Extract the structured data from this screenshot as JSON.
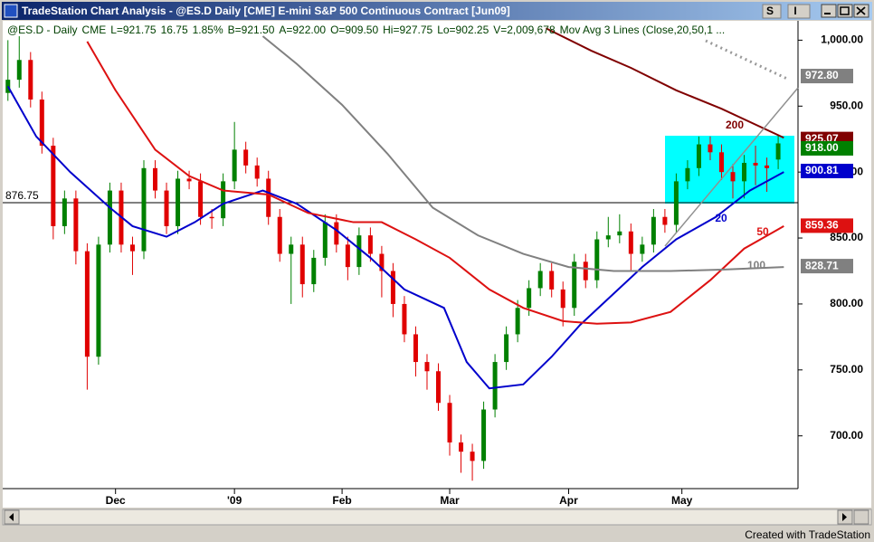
{
  "window": {
    "title": "TradeStation Chart Analysis - @ES.D  Daily  [CME] E-mini S&P 500 Continuous Contract [Jun09]",
    "buttons": [
      "S",
      "I"
    ],
    "footer": "Created with TradeStation"
  },
  "chart_data": {
    "type": "candlestick",
    "info": [
      "@ES.D - Daily",
      "CME",
      "L=921.75",
      "16.75",
      "1.85%",
      "B=921.50",
      "A=922.00",
      "O=909.50",
      "Hi=927.75",
      "Lo=902.25",
      "V=2,009,678",
      "Mov Avg 3 Lines (Close,20,50,1 ..."
    ],
    "up_color": "#008000",
    "down_color": "#e00000",
    "candles": [
      [
        0,
        960,
        1000,
        954,
        970
      ],
      [
        2,
        970,
        1003,
        964,
        985
      ],
      [
        4,
        985,
        991,
        949,
        955
      ],
      [
        6,
        955,
        961,
        914,
        920
      ],
      [
        8,
        920,
        926,
        849,
        859
      ],
      [
        10,
        859,
        886,
        853,
        880
      ],
      [
        12,
        880,
        886,
        830,
        840
      ],
      [
        14,
        840,
        846,
        735,
        760
      ],
      [
        16,
        760,
        851,
        754,
        845
      ],
      [
        18,
        845,
        892,
        839,
        886
      ],
      [
        20,
        886,
        892,
        839,
        845
      ],
      [
        22,
        845,
        851,
        822,
        840
      ],
      [
        24,
        840,
        909,
        834,
        903
      ],
      [
        26,
        903,
        909,
        880,
        886
      ],
      [
        28,
        886,
        892,
        853,
        859
      ],
      [
        30,
        859,
        901,
        853,
        895
      ],
      [
        32,
        895,
        901,
        887,
        893
      ],
      [
        34,
        893,
        899,
        860,
        866
      ],
      [
        36,
        866,
        872,
        857,
        865
      ],
      [
        38,
        865,
        899,
        859,
        893
      ],
      [
        40,
        893,
        938,
        887,
        917
      ],
      [
        42,
        917,
        923,
        899,
        905
      ],
      [
        44,
        905,
        911,
        889,
        895
      ],
      [
        46,
        895,
        901,
        860,
        866
      ],
      [
        48,
        866,
        872,
        832,
        838
      ],
      [
        50,
        838,
        851,
        800,
        845
      ],
      [
        52,
        845,
        851,
        805,
        815
      ],
      [
        54,
        815,
        841,
        809,
        835
      ],
      [
        56,
        835,
        868,
        829,
        862
      ],
      [
        58,
        862,
        868,
        839,
        845
      ],
      [
        60,
        845,
        851,
        818,
        828
      ],
      [
        62,
        828,
        858,
        822,
        852
      ],
      [
        64,
        852,
        858,
        832,
        838
      ],
      [
        66,
        838,
        844,
        805,
        825
      ],
      [
        68,
        825,
        831,
        790,
        800
      ],
      [
        70,
        800,
        806,
        771,
        777
      ],
      [
        72,
        777,
        783,
        745,
        756
      ],
      [
        74,
        756,
        762,
        735,
        749
      ],
      [
        76,
        749,
        755,
        719,
        725
      ],
      [
        78,
        725,
        731,
        685,
        695
      ],
      [
        80,
        695,
        701,
        672,
        688
      ],
      [
        82,
        688,
        694,
        666,
        681
      ],
      [
        84,
        681,
        726,
        675,
        720
      ],
      [
        86,
        720,
        762,
        714,
        756
      ],
      [
        88,
        756,
        783,
        750,
        777
      ],
      [
        90,
        777,
        803,
        771,
        797
      ],
      [
        92,
        797,
        818,
        791,
        812
      ],
      [
        94,
        812,
        831,
        806,
        825
      ],
      [
        96,
        825,
        831,
        805,
        811
      ],
      [
        98,
        811,
        817,
        783,
        797
      ],
      [
        100,
        797,
        838,
        791,
        832
      ],
      [
        102,
        832,
        838,
        812,
        818
      ],
      [
        104,
        818,
        855,
        812,
        849
      ],
      [
        106,
        849,
        866,
        843,
        852
      ],
      [
        108,
        852,
        868,
        846,
        855
      ],
      [
        110,
        855,
        861,
        825,
        838
      ],
      [
        112,
        838,
        851,
        832,
        845
      ],
      [
        114,
        845,
        872,
        839,
        866
      ],
      [
        116,
        866,
        872,
        854,
        860
      ],
      [
        118,
        860,
        899,
        854,
        893
      ],
      [
        120,
        893,
        909,
        887,
        903
      ],
      [
        122,
        903,
        927,
        897,
        921
      ],
      [
        124,
        921,
        927,
        909,
        915
      ],
      [
        126,
        915,
        921,
        894,
        900
      ],
      [
        128,
        900,
        906,
        880,
        893
      ],
      [
        130,
        893,
        913,
        880,
        907
      ],
      [
        132,
        907,
        920,
        890,
        905
      ],
      [
        134,
        905,
        911,
        885,
        903
      ],
      [
        136,
        909.5,
        927.75,
        902.25,
        921.75
      ]
    ],
    "series": [
      {
        "name": "20",
        "color": "#0000cc",
        "x": [
          0,
          5,
          11,
          18,
          22,
          28,
          33,
          38,
          45,
          51,
          58,
          64,
          70,
          77,
          81,
          85,
          91,
          96,
          101,
          107,
          112,
          118,
          125,
          131,
          137
        ],
        "values": [
          965,
          927,
          900,
          873,
          859,
          851,
          862,
          876,
          886,
          876,
          856,
          835,
          811,
          797,
          756,
          736,
          739,
          760,
          784,
          808,
          828,
          849,
          866,
          886,
          900
        ]
      },
      {
        "name": "50",
        "color": "#dd1111",
        "x": [
          14,
          19,
          26,
          32,
          38,
          46,
          53,
          61,
          66,
          72,
          78,
          85,
          91,
          98,
          104,
          110,
          117,
          124,
          130,
          137
        ],
        "values": [
          999,
          962,
          917,
          897,
          886,
          883,
          869,
          862,
          862,
          849,
          835,
          811,
          797,
          787,
          785,
          786,
          794,
          818,
          842,
          859
        ]
      },
      {
        "name": "100",
        "color": "#808080",
        "x": [
          45,
          51,
          59,
          67,
          75,
          83,
          91,
          99,
          107,
          117,
          126,
          137
        ],
        "values": [
          1003,
          982,
          951,
          914,
          873,
          852,
          838,
          828,
          825,
          825,
          826,
          828
        ]
      },
      {
        "name": "200",
        "color": "#800000",
        "x": [
          95,
          103,
          110,
          118,
          126,
          137
        ],
        "values": [
          1009,
          992,
          979,
          962,
          948,
          926
        ]
      }
    ],
    "hline": 876.75,
    "price_flags": [
      {
        "value": 972.8,
        "label": "972.80",
        "color": "#808080"
      },
      {
        "value": 925.07,
        "label": "925.07",
        "color": "#800000"
      },
      {
        "value": 918,
        "label": "918.00",
        "color": "#008000"
      },
      {
        "value": 900.81,
        "label": "900.81",
        "color": "#0000cc"
      },
      {
        "value": 859.36,
        "label": "859.36",
        "color": "#dd1111"
      },
      {
        "value": 828.71,
        "label": "828.71",
        "color": "#808080"
      }
    ],
    "xlim": [
      -0.6,
      139.5
    ],
    "xticks": [
      {
        "value": 19,
        "label": "Dec"
      },
      {
        "value": 40,
        "label": "'09"
      },
      {
        "value": 59,
        "label": "Feb"
      },
      {
        "value": 78,
        "label": "Mar"
      },
      {
        "value": 99,
        "label": "Apr"
      },
      {
        "value": 119,
        "label": "May"
      }
    ],
    "ylim": [
      660,
      1014
    ],
    "yticks": [
      {
        "value": 1000,
        "label": "1,000.00"
      },
      {
        "value": 950,
        "label": "950.00"
      },
      {
        "value": 900,
        "label": "900.00"
      },
      {
        "value": 850,
        "label": "850.00"
      },
      {
        "value": 800,
        "label": "800.00"
      },
      {
        "value": 750,
        "label": "750.00"
      },
      {
        "value": 700,
        "label": "700.00"
      }
    ]
  }
}
